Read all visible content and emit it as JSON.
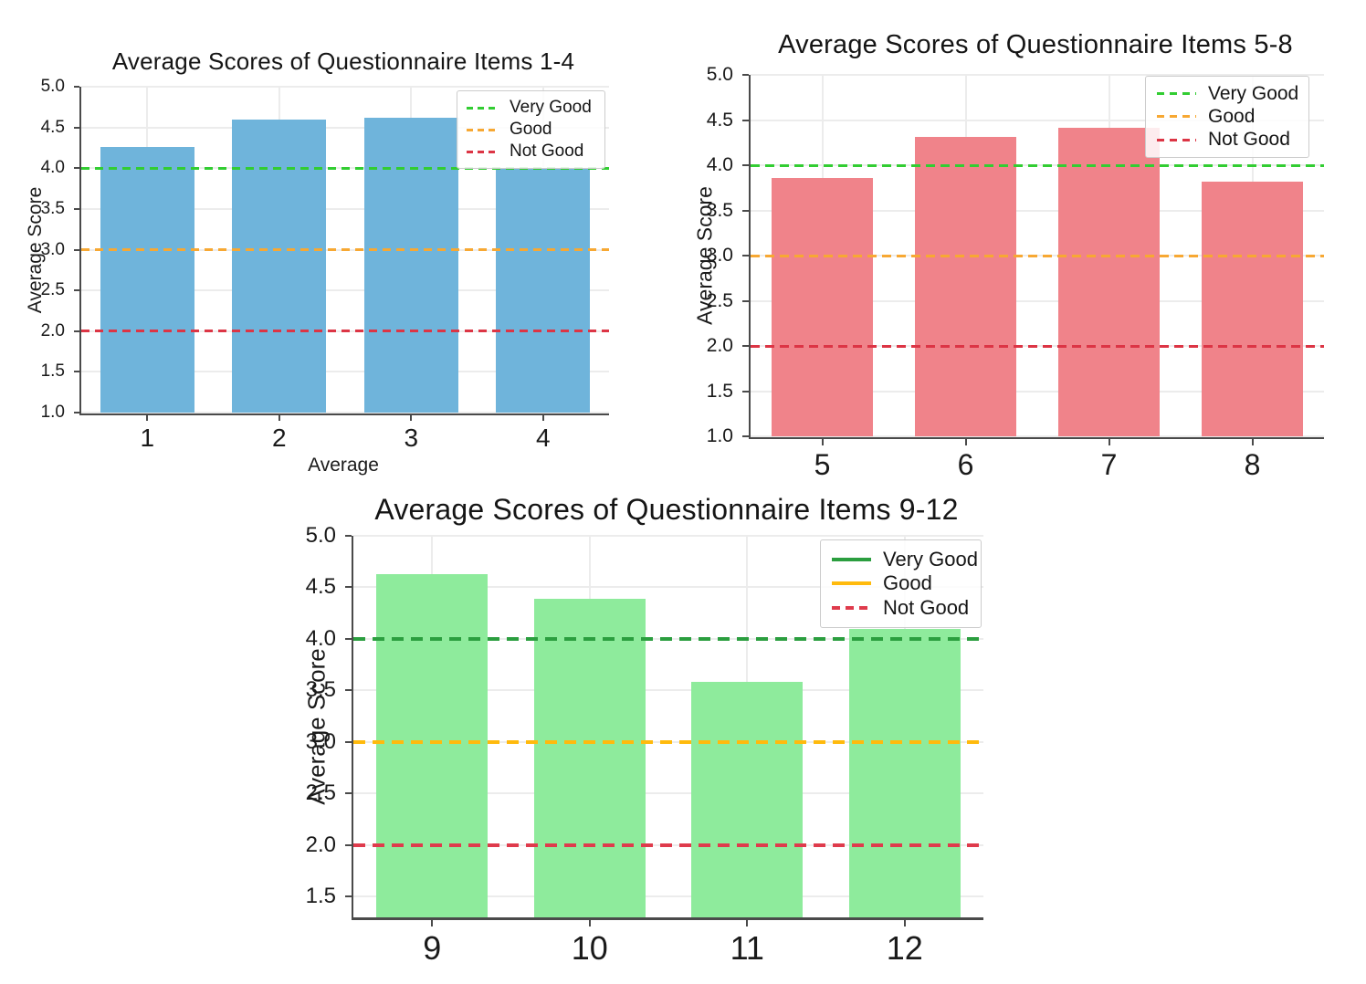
{
  "page": {
    "background": "#ffffff"
  },
  "chart_data": [
    {
      "type": "bar",
      "title": "Average Scores of Questionnaire Items 1-4",
      "xlabel": "Average",
      "ylabel": "Average Score",
      "categories": [
        "1",
        "2",
        "3",
        "4"
      ],
      "values": [
        4.26,
        4.6,
        4.62,
        4.0
      ],
      "ylim": [
        1.0,
        5.0
      ],
      "ytick_labels": [
        "5.0",
        "4.5",
        "4.0",
        "3.5",
        "3.0",
        "2.5",
        "2.0",
        "1.5",
        "1.0"
      ],
      "grid": true,
      "legend_position": "upper right",
      "bar_color": "#6FB4DB",
      "reference_lines": [
        {
          "label": "Very Good",
          "value": 4.0,
          "color": "#32CD32",
          "line_style": "dashed",
          "legend_line_style": "dashed"
        },
        {
          "label": "Good",
          "value": 3.0,
          "color": "#F7A833",
          "line_style": "dashed",
          "legend_line_style": "dashed"
        },
        {
          "label": "Not Good",
          "value": 2.0,
          "color": "#DC3545",
          "line_style": "dashed",
          "legend_line_style": "dashed"
        }
      ]
    },
    {
      "type": "bar",
      "title": "Average Scores of Questionnaire Items 5-8",
      "xlabel": "",
      "ylabel": "Average Score",
      "categories": [
        "5",
        "6",
        "7",
        "8"
      ],
      "values": [
        3.86,
        4.31,
        4.41,
        3.82
      ],
      "ylim": [
        1.0,
        5.0
      ],
      "ytick_labels": [
        "5.0",
        "4.5",
        "4.0",
        "3.5",
        "3.0",
        "2.5",
        "2.0",
        "1.5",
        "1.0"
      ],
      "grid": true,
      "legend_position": "upper right",
      "bar_color": "#F0838A",
      "reference_lines": [
        {
          "label": "Very Good",
          "value": 4.0,
          "color": "#32CD32",
          "line_style": "dashed",
          "legend_line_style": "dashed"
        },
        {
          "label": "Good",
          "value": 3.0,
          "color": "#F7A833",
          "line_style": "dashed",
          "legend_line_style": "dashed"
        },
        {
          "label": "Not Good",
          "value": 2.0,
          "color": "#DC3545",
          "line_style": "dashed",
          "legend_line_style": "dashed"
        }
      ]
    },
    {
      "type": "bar",
      "title": "Average Scores of Questionnaire Items 9-12",
      "xlabel": "",
      "ylabel": "Average Score",
      "categories": [
        "9",
        "10",
        "11",
        "12"
      ],
      "values": [
        4.63,
        4.39,
        3.58,
        4.1
      ],
      "ylim": [
        1.3,
        5.0
      ],
      "ytick_labels": [
        "5.0",
        "4.5",
        "4.0",
        "3.5",
        "3.0",
        "2.5",
        "2.0",
        "1.5"
      ],
      "grid": true,
      "legend_position": "upper right",
      "bar_color": "#8EEB9C",
      "reference_lines": [
        {
          "label": "Very Good",
          "value": 4.0,
          "color": "#2B9E3F",
          "line_style": "dashed",
          "legend_line_style": "solid"
        },
        {
          "label": "Good",
          "value": 3.0,
          "color": "#FFBA0D",
          "line_style": "dashed",
          "legend_line_style": "solid"
        },
        {
          "label": "Not Good",
          "value": 2.0,
          "color": "#DF3B4C",
          "line_style": "dashed",
          "legend_line_style": "dashed"
        }
      ]
    }
  ]
}
